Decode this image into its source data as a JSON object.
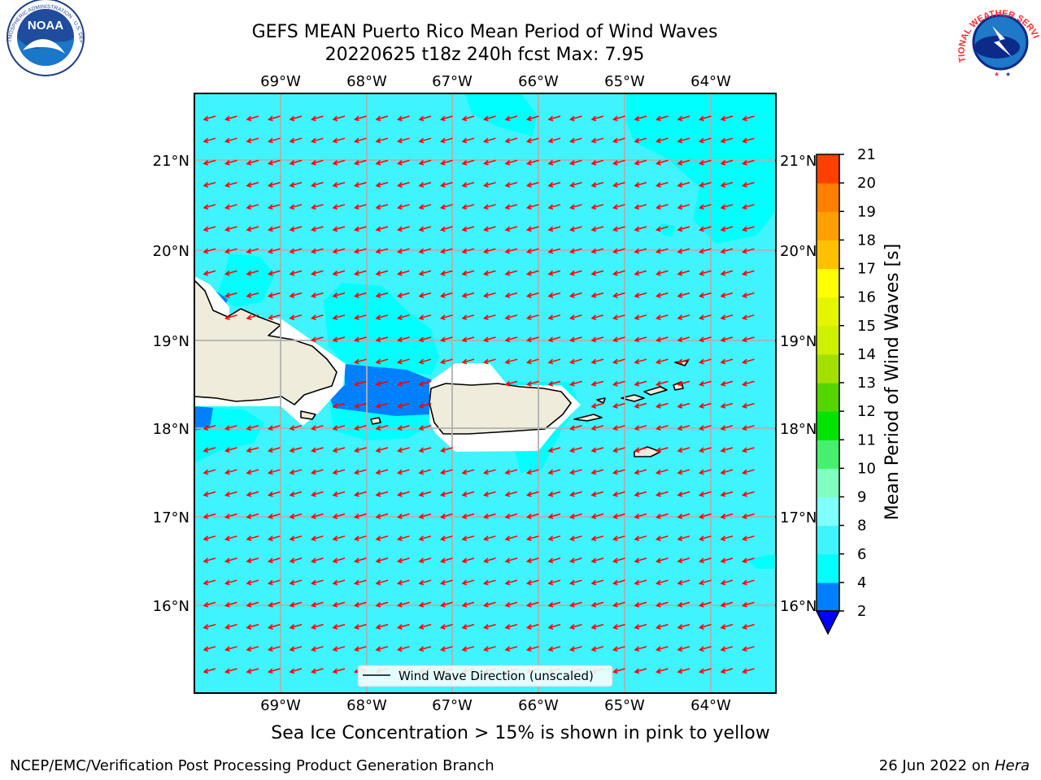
{
  "header": {
    "title_line1": "GEFS MEAN Puerto Rico Mean Period of Wind Waves",
    "title_line2": "20220625 t18z 240h fcst   Max: 7.95"
  },
  "logos": {
    "noaa_text": "NOAA",
    "noaa_ring_text": "NATIONAL OCEANIC AND ATMOSPHERIC ADMINISTRATION · U.S. DEPARTMENT OF COMMERCE",
    "nws_ring_text": "NATIONAL WEATHER SERVICE"
  },
  "map": {
    "lon_labels": [
      "69°W",
      "68°W",
      "67°W",
      "66°W",
      "65°W",
      "64°W"
    ],
    "lat_labels": [
      "21°N",
      "20°N",
      "19°N",
      "18°N",
      "17°N",
      "16°N"
    ],
    "legend_label": "Wind Wave Direction (unscaled)",
    "ocean_color": "#3ff3ff",
    "lighter_patch_color": "#00ffff",
    "short_period_color": "#0080ff",
    "land_color": "#efecdc",
    "arrow_color": "#ff0000",
    "wave_direction": "toward west-southwest"
  },
  "colorbar": {
    "label": "Mean Period of Wind Waves [s]",
    "tick_labels": [
      "2",
      "4",
      "6",
      "8",
      "9",
      "10",
      "11",
      "12",
      "13",
      "14",
      "15",
      "16",
      "17",
      "18",
      "19",
      "20",
      "21"
    ],
    "levels": [
      2,
      4,
      6,
      8,
      9,
      10,
      11,
      12,
      13,
      14,
      15,
      16,
      17,
      18,
      19,
      20,
      21
    ],
    "colors": [
      "#0080ff",
      "#00ffff",
      "#3ff3ff",
      "#80ffff",
      "#80ffc0",
      "#45f06e",
      "#00e400",
      "#55d500",
      "#a3e000",
      "#cff000",
      "#e4f500",
      "#ffff00",
      "#ffc000",
      "#ffa000",
      "#ff8000",
      "#ff4000",
      "#ff2000",
      "#ff0000"
    ],
    "under_color": "#0000ff"
  },
  "footer": {
    "ice_note": "Sea Ice Concentration > 15% is shown in pink to yellow",
    "credit": "NCEP/EMC/Verification Post Processing Product Generation Branch",
    "date": "26 Jun 2022 on ",
    "host": "Hera"
  }
}
